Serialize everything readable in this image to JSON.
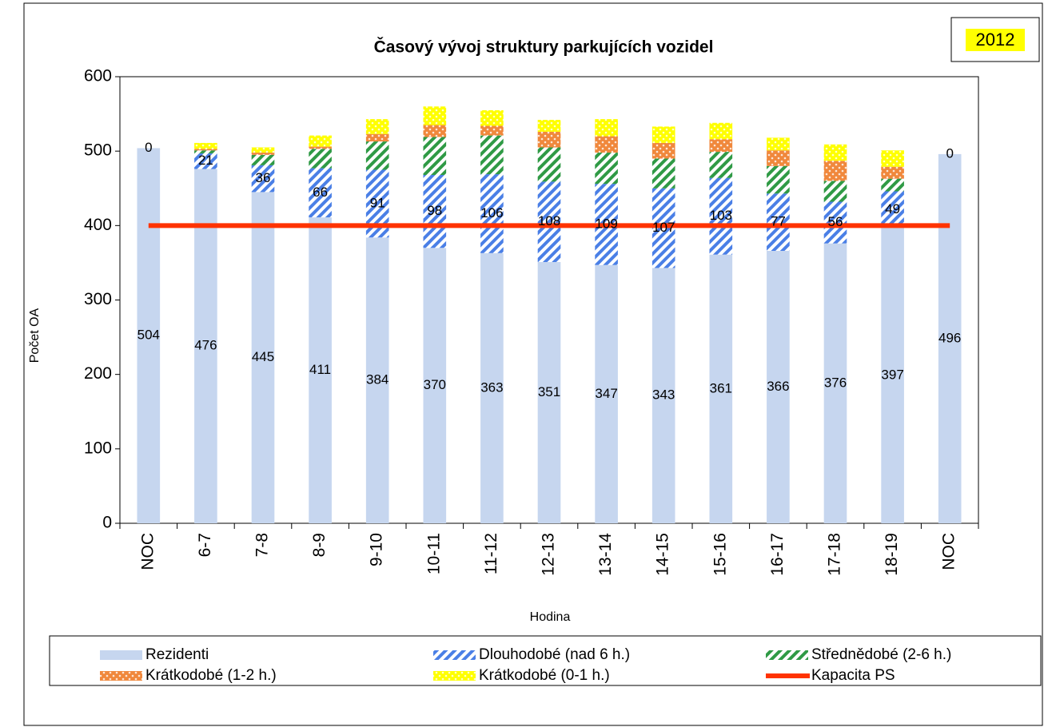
{
  "chart_data": {
    "type": "bar",
    "stacked": true,
    "title": "Časový vývoj struktury parkujících vozidel",
    "badge": "2012",
    "x_label": "Hodina",
    "y_label": "Počet OA",
    "categories": [
      "NOC",
      "6-7",
      "7-8",
      "8-9",
      "9-10",
      "10-11",
      "11-12",
      "12-13",
      "13-14",
      "14-15",
      "15-16",
      "16-17",
      "17-18",
      "18-19",
      "NOC"
    ],
    "ylim": [
      0,
      600
    ],
    "yticks": [
      0,
      100,
      200,
      300,
      400,
      500,
      600
    ],
    "grid": false,
    "series": [
      {
        "name": "Rezidenti",
        "color": "#c6d6ef",
        "values": [
          504,
          476,
          445,
          411,
          384,
          370,
          363,
          351,
          347,
          343,
          361,
          366,
          376,
          397,
          496
        ],
        "labels": true
      },
      {
        "name": "Dlouhodobé (nad 6 h.)",
        "color": "#4a7fe6",
        "values": [
          0,
          21,
          36,
          66,
          91,
          98,
          106,
          108,
          109,
          107,
          103,
          77,
          56,
          49,
          0
        ],
        "labels": true
      },
      {
        "name": "Střednědobé (2-6 h.)",
        "color": "#2f9a45",
        "values": [
          0,
          4,
          14,
          26,
          38,
          51,
          52,
          46,
          42,
          40,
          35,
          37,
          28,
          17,
          0
        ]
      },
      {
        "name": "Krátkodobé (1-2 h.)",
        "color": "#f0883c",
        "values": [
          0,
          2,
          3,
          3,
          10,
          16,
          13,
          21,
          22,
          21,
          17,
          21,
          27,
          16,
          0
        ]
      },
      {
        "name": "Krátkodobé (0-1 h.)",
        "color": "#ffff00",
        "values": [
          0,
          8,
          7,
          15,
          20,
          25,
          21,
          16,
          23,
          22,
          22,
          17,
          22,
          22,
          0
        ]
      },
      {
        "name": "Kapacita PS",
        "type": "line",
        "color": "#ff3300",
        "values": [
          400,
          400,
          400,
          400,
          400,
          400,
          400,
          400,
          400,
          400,
          400,
          400,
          400,
          400,
          400
        ]
      }
    ]
  }
}
